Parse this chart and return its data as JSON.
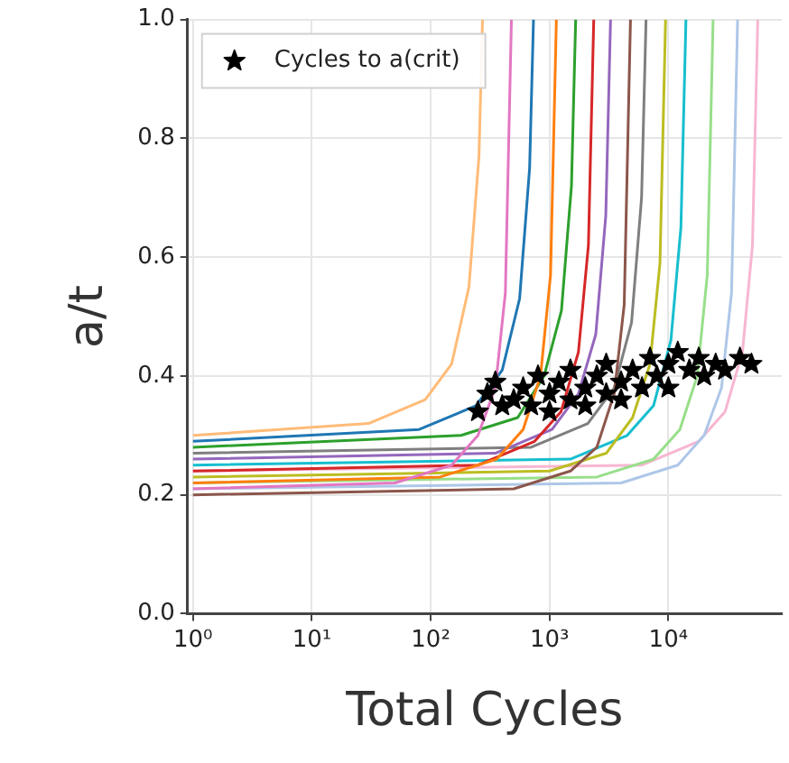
{
  "chart_data": {
    "type": "line",
    "xlabel": "Total Cycles",
    "ylabel": "a/t",
    "log": "x",
    "grid": true,
    "legend": "top left",
    "xlim": [
      0.9,
      90000
    ],
    "xticks": [
      {
        "value": 1,
        "label": "10⁰"
      },
      {
        "value": 10,
        "label": "10¹"
      },
      {
        "value": 100,
        "label": "10²"
      },
      {
        "value": 1000,
        "label": "10³"
      },
      {
        "value": 10000,
        "label": "10⁴"
      }
    ],
    "ylim": [
      0,
      1
    ],
    "yticks": [
      {
        "value": 0,
        "label": "0.0"
      },
      {
        "value": 0.2,
        "label": "0.2"
      },
      {
        "value": 0.4,
        "label": "0.4"
      },
      {
        "value": 0.6,
        "label": "0.6"
      },
      {
        "value": 0.8,
        "label": "0.8"
      },
      {
        "value": 1,
        "label": "1.0"
      }
    ],
    "series": [
      {
        "type": "line",
        "color": "#ffbb78",
        "x": [
          1,
          30,
          90,
          150,
          210,
          255,
          273
        ],
        "values": [
          0.3,
          0.32,
          0.36,
          0.42,
          0.55,
          0.77,
          1.0
        ]
      },
      {
        "type": "line",
        "color": "#e377c2",
        "x": [
          1,
          50,
          150,
          250,
          350,
          425,
          478
        ],
        "values": [
          0.21,
          0.22,
          0.25,
          0.3,
          0.38,
          0.54,
          1.0
        ]
      },
      {
        "type": "line",
        "color": "#1f77b4",
        "x": [
          1,
          80,
          240,
          400,
          560,
          680,
          733
        ],
        "values": [
          0.29,
          0.31,
          0.35,
          0.41,
          0.53,
          0.75,
          1.0
        ]
      },
      {
        "type": "line",
        "color": "#ff7f0e",
        "x": [
          1,
          120,
          360,
          600,
          840,
          1020,
          1142
        ],
        "values": [
          0.22,
          0.23,
          0.26,
          0.31,
          0.4,
          0.57,
          1.0
        ]
      },
      {
        "type": "line",
        "color": "#2ca02c",
        "x": [
          1,
          180,
          540,
          900,
          1260,
          1530,
          1660
        ],
        "values": [
          0.28,
          0.3,
          0.33,
          0.4,
          0.51,
          0.72,
          1.0
        ]
      },
      {
        "type": "line",
        "color": "#d62728",
        "x": [
          1,
          250,
          750,
          1250,
          1750,
          2125,
          2356
        ],
        "values": [
          0.24,
          0.25,
          0.29,
          0.34,
          0.44,
          0.62,
          1.0
        ]
      },
      {
        "type": "line",
        "color": "#9467bd",
        "x": [
          1,
          350,
          1050,
          1750,
          2450,
          2975,
          3263
        ],
        "values": [
          0.26,
          0.27,
          0.31,
          0.37,
          0.47,
          0.67,
          1.0
        ]
      },
      {
        "type": "line",
        "color": "#8c564b",
        "x": [
          1,
          500,
          1500,
          2500,
          3500,
          4250,
          4800
        ],
        "values": [
          0.2,
          0.21,
          0.24,
          0.28,
          0.37,
          0.52,
          1.0
        ]
      },
      {
        "type": "line",
        "color": "#7f7f7f",
        "x": [
          1,
          700,
          2100,
          3500,
          4900,
          5950,
          6490
        ],
        "values": [
          0.27,
          0.28,
          0.32,
          0.38,
          0.49,
          0.7,
          1.0
        ]
      },
      {
        "type": "line",
        "color": "#bcbd22",
        "x": [
          1,
          1000,
          3000,
          5000,
          7000,
          8500,
          9470
        ],
        "values": [
          0.23,
          0.24,
          0.27,
          0.33,
          0.42,
          0.59,
          1.0
        ]
      },
      {
        "type": "line",
        "color": "#17becf",
        "x": [
          1,
          1500,
          4500,
          7500,
          10500,
          12750,
          14060
        ],
        "values": [
          0.25,
          0.26,
          0.3,
          0.35,
          0.46,
          0.65,
          1.0
        ]
      },
      {
        "type": "line",
        "color": "#98df8a",
        "x": [
          1,
          2500,
          7500,
          12500,
          17500,
          21250,
          23790
        ],
        "values": [
          0.22,
          0.23,
          0.26,
          0.31,
          0.4,
          0.57,
          1.0
        ]
      },
      {
        "type": "line",
        "color": "#aec7e8",
        "x": [
          1,
          4000,
          12000,
          20000,
          28000,
          34000,
          38240
        ],
        "values": [
          0.21,
          0.22,
          0.25,
          0.3,
          0.38,
          0.54,
          1.0
        ]
      },
      {
        "type": "line",
        "color": "#f7b6d2",
        "x": [
          1,
          6000,
          18000,
          30000,
          42000,
          51000,
          56540
        ],
        "values": [
          0.24,
          0.25,
          0.29,
          0.34,
          0.44,
          0.62,
          1.0
        ]
      },
      {
        "type": "scatter",
        "name": "Cycles to a(crit)",
        "color": "#000000",
        "marker": "star",
        "x": [
          250,
          300,
          350,
          400,
          500,
          600,
          700,
          800,
          1000,
          1000,
          1200,
          1500,
          1500,
          2000,
          2000,
          2500,
          3000,
          3000,
          4000,
          4000,
          5000,
          6000,
          7000,
          8000,
          10000,
          10000,
          12000,
          15000,
          18000,
          20000,
          25000,
          30000,
          40000,
          50000
        ],
        "values": [
          0.34,
          0.37,
          0.39,
          0.35,
          0.36,
          0.38,
          0.35,
          0.4,
          0.37,
          0.34,
          0.39,
          0.36,
          0.41,
          0.38,
          0.35,
          0.4,
          0.37,
          0.42,
          0.39,
          0.36,
          0.41,
          0.38,
          0.43,
          0.4,
          0.42,
          0.38,
          0.44,
          0.41,
          0.43,
          0.4,
          0.42,
          0.41,
          0.43,
          0.42
        ]
      }
    ]
  }
}
